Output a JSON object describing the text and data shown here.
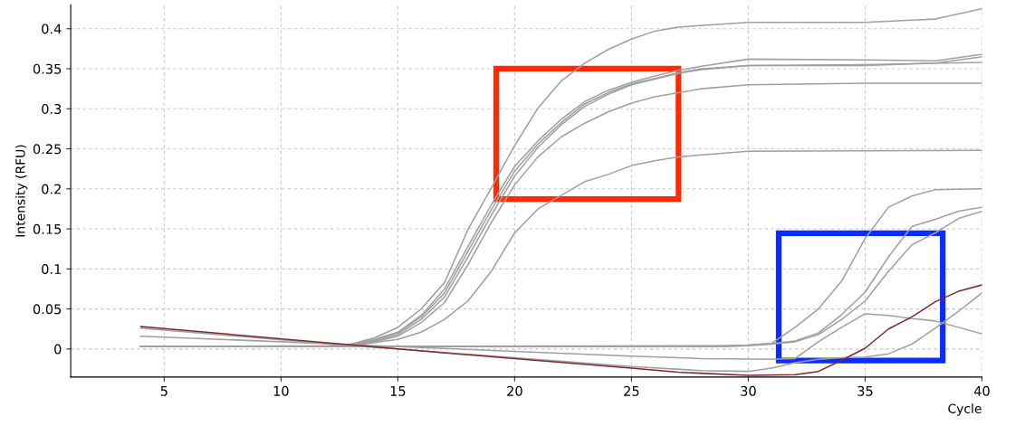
{
  "chart_data": {
    "type": "line",
    "xlabel": "Cycle",
    "ylabel": "Intensity (RFU)",
    "xlim": [
      1,
      40
    ],
    "ylim": [
      -0.035,
      0.43
    ],
    "xticks": [
      5,
      10,
      15,
      20,
      25,
      30,
      35,
      40
    ],
    "yticks": [
      0,
      0.05,
      0.1,
      0.15,
      0.2,
      0.25,
      0.3,
      0.35,
      0.4
    ],
    "grid": true,
    "marker": "none",
    "line_style": "solid",
    "series": [
      {
        "color": "#a0a0a0",
        "x": [
          4,
          12,
          13,
          14,
          15,
          16,
          17,
          18,
          19,
          20,
          21,
          22,
          23,
          24,
          25,
          26,
          27,
          30,
          35,
          38,
          40
        ],
        "values": [
          0.003,
          0.004,
          0.006,
          0.014,
          0.027,
          0.05,
          0.083,
          0.149,
          0.201,
          0.254,
          0.301,
          0.335,
          0.357,
          0.374,
          0.387,
          0.397,
          0.402,
          0.408,
          0.408,
          0.412,
          0.425
        ]
      },
      {
        "color": "#a0a0a0",
        "x": [
          4,
          12,
          13,
          14,
          15,
          16,
          17,
          18,
          19,
          20,
          21,
          22,
          23,
          24,
          25,
          26,
          27,
          28,
          30,
          35,
          38,
          40
        ],
        "values": [
          0.003,
          0.003,
          0.006,
          0.012,
          0.021,
          0.042,
          0.075,
          0.128,
          0.18,
          0.228,
          0.26,
          0.287,
          0.309,
          0.323,
          0.333,
          0.341,
          0.348,
          0.353,
          0.362,
          0.361,
          0.36,
          0.368
        ]
      },
      {
        "color": "#a0a0a0",
        "x": [
          4,
          12,
          13,
          14,
          15,
          16,
          17,
          18,
          19,
          20,
          21,
          22,
          23,
          24,
          25,
          26,
          27,
          28,
          30,
          35,
          38,
          40
        ],
        "values": [
          0.003,
          0.003,
          0.006,
          0.011,
          0.02,
          0.04,
          0.07,
          0.122,
          0.174,
          0.222,
          0.256,
          0.283,
          0.306,
          0.32,
          0.331,
          0.338,
          0.345,
          0.35,
          0.354,
          0.354,
          0.357,
          0.365
        ]
      },
      {
        "color": "#a0a0a0",
        "x": [
          4,
          12,
          13,
          14,
          15,
          16,
          17,
          18,
          19,
          20,
          21,
          22,
          23,
          24,
          25,
          26,
          27,
          28,
          30,
          35,
          40
        ],
        "values": [
          0.003,
          0.003,
          0.005,
          0.01,
          0.018,
          0.037,
          0.065,
          0.115,
          0.167,
          0.216,
          0.252,
          0.28,
          0.303,
          0.318,
          0.33,
          0.337,
          0.344,
          0.349,
          0.354,
          0.355,
          0.358
        ]
      },
      {
        "color": "#a0a0a0",
        "x": [
          4,
          12,
          13,
          14,
          15,
          16,
          17,
          18,
          19,
          20,
          21,
          22,
          23,
          24,
          25,
          26,
          28,
          30,
          35,
          40
        ],
        "values": [
          0.003,
          0.003,
          0.005,
          0.009,
          0.016,
          0.033,
          0.058,
          0.105,
          0.158,
          0.205,
          0.24,
          0.265,
          0.282,
          0.296,
          0.307,
          0.315,
          0.325,
          0.33,
          0.332,
          0.332
        ]
      },
      {
        "color": "#a0a0a0",
        "x": [
          4,
          12,
          13,
          14,
          15,
          16,
          17,
          18,
          19,
          20,
          21,
          22,
          23,
          24,
          25,
          26,
          27,
          30,
          40
        ],
        "values": [
          0.003,
          0.003,
          0.004,
          0.008,
          0.012,
          0.021,
          0.037,
          0.06,
          0.097,
          0.145,
          0.175,
          0.192,
          0.209,
          0.218,
          0.229,
          0.235,
          0.24,
          0.247,
          0.248
        ]
      },
      {
        "color": "#a0a0a0",
        "x": [
          4,
          28,
          29,
          30,
          31,
          32,
          33,
          34,
          35,
          36,
          37,
          38,
          40
        ],
        "values": [
          0.003,
          0.003,
          0.004,
          0.005,
          0.007,
          0.027,
          0.05,
          0.085,
          0.138,
          0.177,
          0.191,
          0.199,
          0.2
        ]
      },
      {
        "color": "#a0a0a0",
        "x": [
          4,
          29,
          30,
          31,
          32,
          33,
          34,
          35,
          36,
          37,
          38,
          39,
          40
        ],
        "values": [
          0.003,
          0.004,
          0.005,
          0.007,
          0.01,
          0.02,
          0.043,
          0.071,
          0.115,
          0.153,
          0.162,
          0.172,
          0.177
        ]
      },
      {
        "color": "#a0a0a0",
        "x": [
          4,
          29,
          30,
          31,
          32,
          33,
          34,
          35,
          36,
          37,
          38,
          39,
          40
        ],
        "values": [
          0.003,
          0.003,
          0.004,
          0.006,
          0.009,
          0.018,
          0.037,
          0.06,
          0.097,
          0.13,
          0.145,
          0.163,
          0.172
        ]
      },
      {
        "color": "#a0a0a0",
        "x": [
          4,
          10,
          15,
          20,
          25,
          28,
          31,
          32,
          33,
          34,
          35,
          36,
          37,
          38,
          40
        ],
        "values": [
          0.016,
          0.009,
          0.003,
          -0.003,
          -0.009,
          -0.012,
          -0.013,
          -0.012,
          0.009,
          0.027,
          0.044,
          0.042,
          0.038,
          0.035,
          0.019
        ]
      },
      {
        "color": "#a0a0a0",
        "x": [
          4,
          13,
          15,
          20,
          25,
          28,
          30,
          31,
          32,
          33,
          34,
          35,
          36,
          37,
          38,
          39,
          40
        ],
        "values": [
          0.026,
          0.004,
          0.0,
          -0.011,
          -0.022,
          -0.027,
          -0.028,
          -0.024,
          -0.017,
          -0.013,
          -0.011,
          -0.01,
          -0.006,
          0.006,
          0.026,
          0.047,
          0.07
        ]
      },
      {
        "color": "#7b2b2b",
        "x": [
          4,
          15,
          20,
          25,
          27,
          30,
          32,
          33,
          34,
          35,
          36,
          37,
          38,
          39,
          40
        ],
        "values": [
          0.028,
          0.0,
          -0.012,
          -0.024,
          -0.029,
          -0.033,
          -0.032,
          -0.028,
          -0.014,
          0.001,
          0.025,
          0.04,
          0.059,
          0.072,
          0.08
        ]
      }
    ]
  }
}
